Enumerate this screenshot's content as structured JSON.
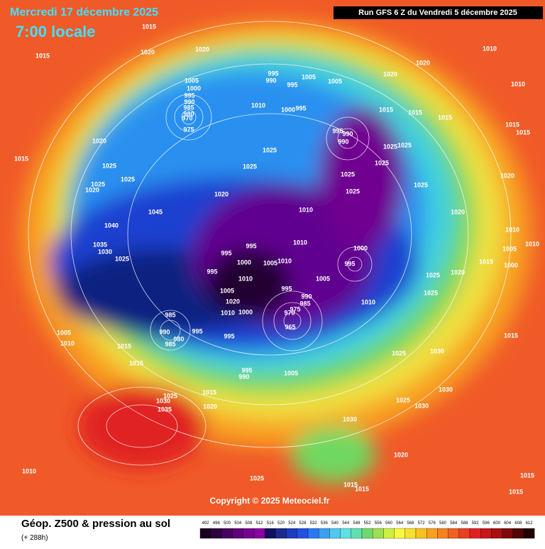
{
  "header": {
    "title": "Mercredi 17 décembre 2025",
    "time": "7:00 locale",
    "run": "Run GFS 6 Z du Vendredi 5 décembre 2025"
  },
  "map": {
    "copyright": "Copyright © 2025 Meteociel.fr",
    "isobar_labels": [
      1015,
      1020,
      1015,
      1020,
      1010,
      1020,
      1010,
      1020,
      995,
      990,
      1005,
      995,
      1005,
      1005,
      1000,
      995,
      990,
      985,
      980,
      970,
      975,
      1010,
      1000,
      995,
      1015,
      1015,
      1015,
      1015,
      1015,
      995,
      990,
      990,
      1025,
      1025,
      1020,
      1015,
      1025,
      1025,
      1025,
      1025,
      1025,
      1020,
      1025,
      1020,
      1025,
      1025,
      1025,
      1020,
      1010,
      1045,
      1020,
      1040,
      1010,
      1010,
      995,
      995,
      1035,
      1030,
      1025,
      1000,
      1005,
      1010,
      1000,
      1005,
      1010,
      995,
      1015,
      1000,
      995,
      1025,
      1020,
      1010,
      1005,
      995,
      1005,
      1025,
      990,
      985,
      1020,
      975,
      1010,
      1000,
      1010,
      985,
      970,
      995,
      965,
      990,
      1005,
      995,
      1015,
      980,
      985,
      1010,
      1015,
      1030,
      1025,
      1015,
      995,
      1005,
      990,
      1030,
      1015,
      1025,
      1030,
      1025,
      1030,
      1020,
      1035,
      1030,
      1020,
      1010,
      1025,
      1015,
      1015,
      1015,
      1015
    ]
  },
  "legend": {
    "caption": "Géop. Z500 & pression au sol",
    "lead_time": "(+ 288h)",
    "scale": [
      492,
      496,
      500,
      504,
      508,
      512,
      516,
      520,
      524,
      528,
      532,
      536,
      540,
      544,
      548,
      552,
      556,
      560,
      564,
      568,
      572,
      576,
      580,
      584,
      588,
      592,
      596,
      600,
      604,
      608,
      612
    ],
    "colors": [
      "#1a0020",
      "#2e0040",
      "#480060",
      "#600078",
      "#780090",
      "#8a00a0",
      "#101060",
      "#1a2a90",
      "#1e3cc0",
      "#2050e0",
      "#2878f0",
      "#3aa0f0",
      "#50c8f0",
      "#60e0e0",
      "#60e0b0",
      "#70d870",
      "#a0e050",
      "#d0f040",
      "#f8f840",
      "#f8e030",
      "#f8c020",
      "#f8a020",
      "#f88020",
      "#f06020",
      "#e84020",
      "#e02020",
      "#c81818",
      "#a81010",
      "#800808",
      "#500404",
      "#200000"
    ]
  }
}
